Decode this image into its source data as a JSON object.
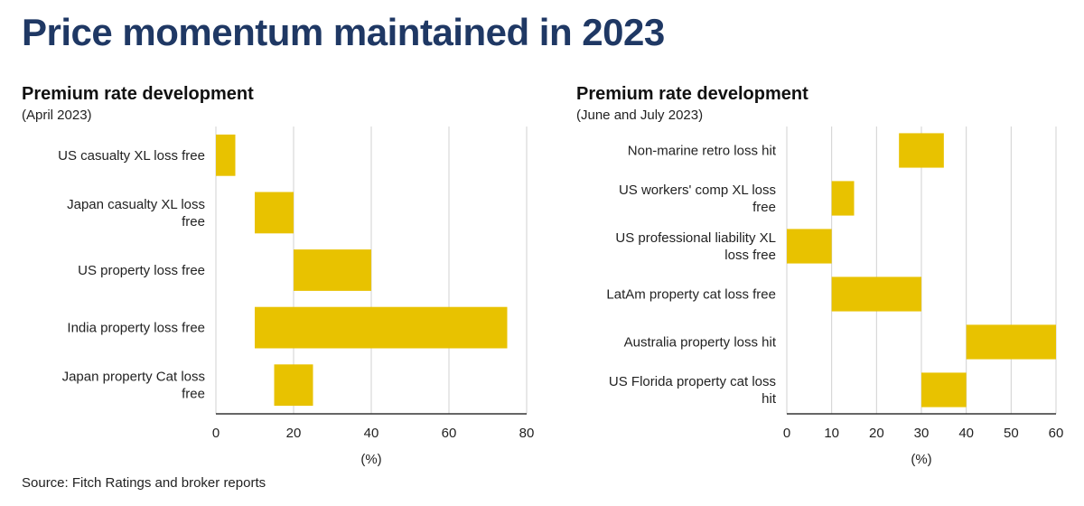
{
  "title": "Price momentum maintained in 2023",
  "source": "Source: Fitch Ratings and broker reports",
  "colors": {
    "bar": "#e8c200",
    "title": "#1f3864",
    "grid": "#d0d0d0"
  },
  "chart_data": [
    {
      "type": "bar",
      "orientation": "horizontal-range",
      "title": "Premium rate development",
      "subtitle": "(April 2023)",
      "xlabel": "(%)",
      "xlim": [
        0,
        80
      ],
      "ticks": [
        0,
        20,
        40,
        60,
        80
      ],
      "grid": true,
      "categories": [
        "US casualty XL loss free",
        "Japan casualty XL loss free",
        "US property loss free",
        "India property loss free",
        "Japan property Cat loss free"
      ],
      "ranges": [
        [
          0,
          5
        ],
        [
          10,
          20
        ],
        [
          20,
          40
        ],
        [
          10,
          75
        ],
        [
          15,
          25
        ]
      ]
    },
    {
      "type": "bar",
      "orientation": "horizontal-range",
      "title": "Premium rate development",
      "subtitle": "(June and July 2023)",
      "xlabel": "(%)",
      "xlim": [
        0,
        60
      ],
      "ticks": [
        0,
        10,
        20,
        30,
        40,
        50,
        60
      ],
      "grid": true,
      "categories": [
        "Non-marine retro loss hit",
        "US workers' comp XL loss free",
        "US professional liability XL loss free",
        "LatAm property cat loss free",
        "Australia property loss hit",
        "US Florida property cat loss hit"
      ],
      "ranges": [
        [
          25,
          35
        ],
        [
          10,
          15
        ],
        [
          0,
          10
        ],
        [
          10,
          30
        ],
        [
          40,
          60
        ],
        [
          30,
          40
        ]
      ]
    }
  ]
}
